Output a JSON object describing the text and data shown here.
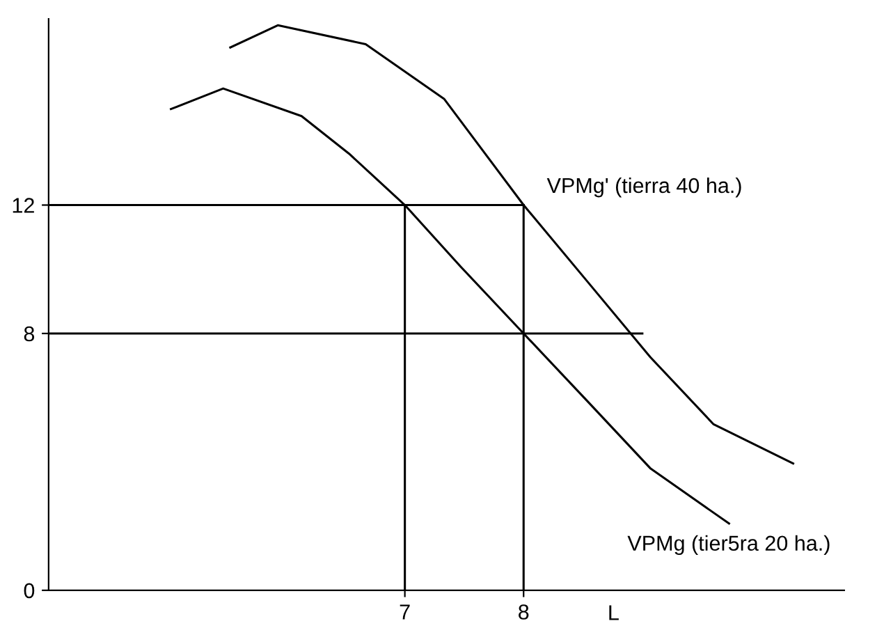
{
  "chart_data": {
    "type": "line",
    "xlabel": "L",
    "xlim": [
      4,
      10.7
    ],
    "ylim": [
      0,
      17.8
    ],
    "xticks": [
      7,
      8
    ],
    "yticks": [
      0,
      8,
      12
    ],
    "grid": false,
    "legend": false,
    "marker": "none",
    "line_style": "solid",
    "series": [
      {
        "name": "VPMg (tier5ra 20 ha.)",
        "color": "#000000",
        "x": [
          5.03,
          5.47,
          6.13,
          6.53,
          7,
          7.47,
          8,
          8.53,
          9.07,
          9.73
        ],
        "values": [
          14.99,
          15.63,
          14.77,
          13.6,
          12,
          10.08,
          8,
          5.92,
          3.79,
          2.08
        ]
      },
      {
        "name": "VPMg' (tierra 40 ha.)",
        "color": "#000000",
        "x": [
          5.53,
          5.93,
          6.67,
          7.33,
          8,
          8.53,
          9.07,
          9.6,
          10.27
        ],
        "values": [
          16.91,
          17.6,
          17.01,
          15.31,
          12,
          9.65,
          7.25,
          5.17,
          3.95
        ]
      },
      {
        "color": "#000000",
        "x": [
          4,
          8
        ],
        "values": [
          12,
          12
        ]
      },
      {
        "color": "#000000",
        "x": [
          4,
          9.0
        ],
        "values": [
          8,
          8
        ]
      },
      {
        "color": "#000000",
        "x": [
          7,
          7
        ],
        "values": [
          0,
          12
        ]
      },
      {
        "color": "#000000",
        "x": [
          8,
          8
        ],
        "values": [
          0,
          12
        ]
      }
    ]
  }
}
